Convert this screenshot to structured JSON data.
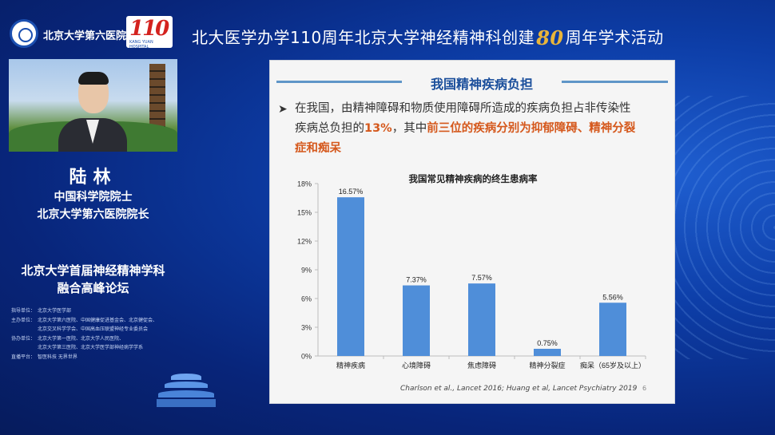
{
  "header": {
    "hospital_name": "北京大学第六医院",
    "anniversary_number": "110",
    "anniversary_sub": "KANG YUAN HOSPITAL",
    "title_part1": "北大医学办学110周年北京大学神经精神科创建",
    "title_eighty": "80",
    "title_part2": "周年学术活动"
  },
  "speaker": {
    "name": "陆林",
    "title1": "中国科学院院士",
    "title2": "北京大学第六医院院长"
  },
  "forum": {
    "line1": "北京大学首届神经精神学科",
    "line2": "融合高峰论坛"
  },
  "organizers": [
    {
      "key": "指导单位：",
      "value": "北京大学医学部"
    },
    {
      "key": "主办单位：",
      "value": "北京大学第六医院、中国健康促进基金会、北京健促会、"
    },
    {
      "key": "",
      "value": "北京交叉科学学会、中国高血压联盟神经专业委员会"
    },
    {
      "key": "协办单位：",
      "value": "北京大学第一医院、北京大学人民医院、"
    },
    {
      "key": "",
      "value": "北京大学第三医院、北京大学医学部神经病学学系"
    },
    {
      "key": "直播平台：",
      "value": "智医科技  无界世界"
    }
  ],
  "slide": {
    "title": "我国精神疾病负担",
    "bullet": "➤",
    "para_line1": "在我国，由精神障碍和物质使用障碍所造成的疾病负担占非传染性",
    "para_line2_a": "疾病总负担的",
    "para_line2_hl1": "13%",
    "para_line2_b": "，其中",
    "para_line2_hl2": "前三位的疾病分别为抑郁障碍、精神分裂",
    "para_line3_hl": "症和痴呆",
    "citation": "Charlson et al., Lancet 2016; Huang et al, Lancet Psychiatry 2019",
    "page_number": "6"
  },
  "chart_data": {
    "type": "bar",
    "title": "我国常见精神疾病的终生患病率",
    "categories": [
      "精神疾病",
      "心境障碍",
      "焦虑障碍",
      "精神分裂症",
      "痴呆（65岁及以上）"
    ],
    "values": [
      16.57,
      7.37,
      7.57,
      0.75,
      5.56
    ],
    "value_labels": [
      "16.57%",
      "7.37%",
      "7.57%",
      "0.75%",
      "5.56%"
    ],
    "y_ticks": [
      "0%",
      "3%",
      "6%",
      "9%",
      "12%",
      "15%",
      "18%"
    ],
    "ylim": [
      0,
      18
    ],
    "grid": false,
    "bar_color": "#4f8ed9"
  }
}
